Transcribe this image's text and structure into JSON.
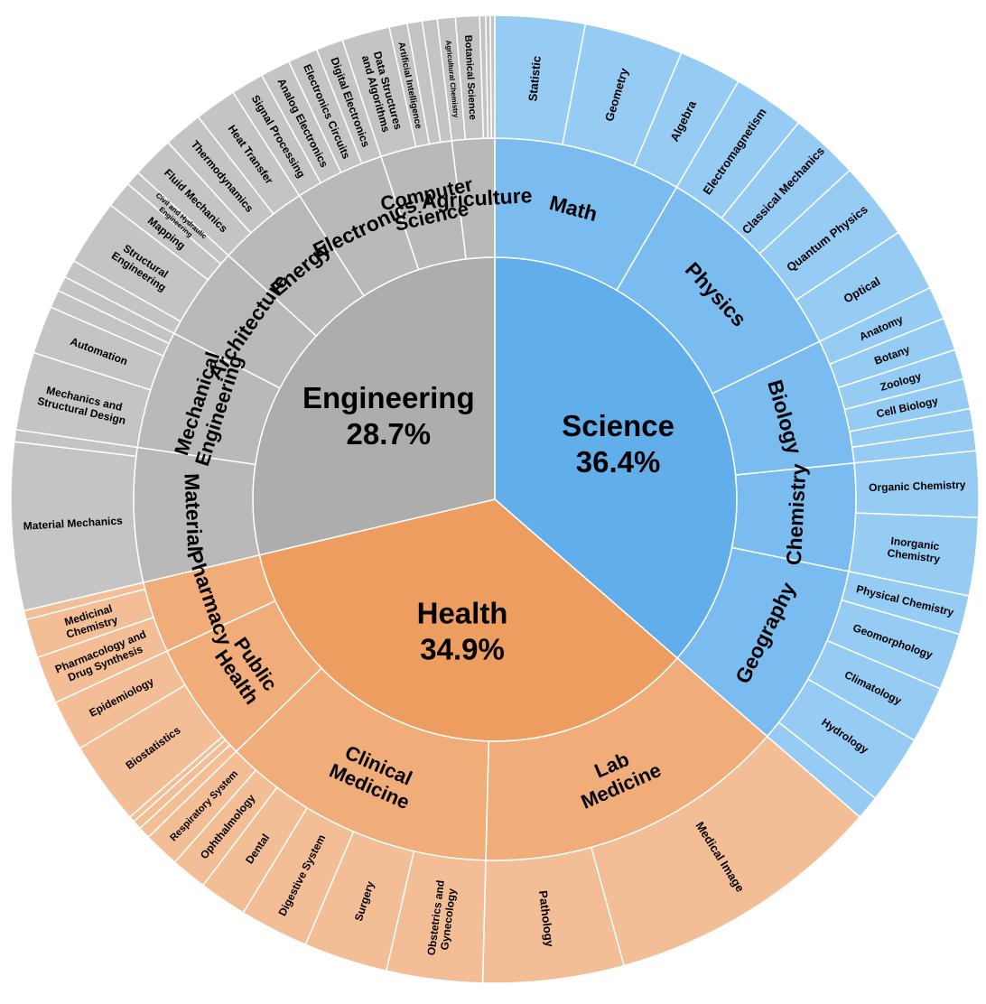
{
  "chart_data": {
    "type": "sunburst",
    "title": "",
    "top": [
      {
        "name": "Science",
        "label": "Science",
        "value_label": "36.4%",
        "value": 36.4,
        "color": "#62AEEA",
        "mid_color": "#7BBCF0",
        "outer_color": "#96CBF3"
      },
      {
        "name": "Health",
        "label": "Health",
        "value_label": "34.9%",
        "value": 34.9,
        "color": "#ED9D60",
        "mid_color": "#F0AD79",
        "outer_color": "#F3BE95"
      },
      {
        "name": "Engineering",
        "label": "Engineering",
        "value_label": "28.7%",
        "value": 28.7,
        "color": "#ADADAD",
        "mid_color": "#B9B9B9",
        "outer_color": "#C4C4C4"
      }
    ],
    "mid": [
      {
        "parent": "Science",
        "label": "Math",
        "lines": [
          "Math"
        ],
        "value": 8.4
      },
      {
        "parent": "Science",
        "label": "Physics",
        "lines": [
          "Physics"
        ],
        "value": 9.4
      },
      {
        "parent": "Science",
        "label": "Biology",
        "lines": [
          "Biology"
        ],
        "value": 5.6
      },
      {
        "parent": "Science",
        "label": "Chemistry",
        "lines": [
          "Chemistry"
        ],
        "value": 4.8
      },
      {
        "parent": "Science",
        "label": "Geography",
        "lines": [
          "Geography"
        ],
        "value": 8.2
      },
      {
        "parent": "Health",
        "label": "Lab Medicine",
        "lines": [
          "Lab",
          "Medicine"
        ],
        "value": 14.0
      },
      {
        "parent": "Health",
        "label": "Clinical Medicine",
        "lines": [
          "Clinical",
          "Medicine"
        ],
        "value": 12.3
      },
      {
        "parent": "Health",
        "label": "Public Health",
        "lines": [
          "Public",
          "Health"
        ],
        "value": 5.4
      },
      {
        "parent": "Health",
        "label": "Pharmacy",
        "lines": [
          "Pharmacy"
        ],
        "value": 3.2
      },
      {
        "parent": "Engineering",
        "label": "Material",
        "lines": [
          "Material"
        ],
        "value": 6.0
      },
      {
        "parent": "Engineering",
        "label": "Mechanical Engineering",
        "lines": [
          "Mechanical",
          "Engineering"
        ],
        "value": 5.3
      },
      {
        "parent": "Engineering",
        "label": "Architecture",
        "lines": [
          "Architecture"
        ],
        "value": 4.2
      },
      {
        "parent": "Engineering",
        "label": "Energy",
        "lines": [
          "Energy"
        ],
        "value": 4.1
      },
      {
        "parent": "Engineering",
        "label": "Electronics",
        "lines": [
          "Electronics"
        ],
        "value": 4.0
      },
      {
        "parent": "Engineering",
        "label": "Computer Science",
        "lines": [
          "Computer",
          "Science"
        ],
        "value": 3.2
      },
      {
        "parent": "Engineering",
        "label": "Agriculture",
        "lines": [
          "Agriculture"
        ],
        "value": 1.9
      }
    ],
    "outer": [
      {
        "parent": "Math",
        "label": "Statistic",
        "lines": [
          "Statistic"
        ],
        "value": 3.0,
        "size": 13
      },
      {
        "parent": "Math",
        "label": "Geometry",
        "lines": [
          "Geometry"
        ],
        "value": 3.3,
        "size": 13
      },
      {
        "parent": "Math",
        "label": "Algebra",
        "lines": [
          "Algebra"
        ],
        "value": 2.1,
        "size": 13
      },
      {
        "parent": "Physics",
        "label": "Electromagnetism",
        "lines": [
          "Electromagnetism"
        ],
        "value": 2.4,
        "size": 13
      },
      {
        "parent": "Physics",
        "label": "Classical Mechanics",
        "lines": [
          "Classical Mechanics"
        ],
        "value": 2.3,
        "size": 13
      },
      {
        "parent": "Physics",
        "label": "Quantum Physics",
        "lines": [
          "Quantum Physics"
        ],
        "value": 2.6,
        "size": 13
      },
      {
        "parent": "Physics",
        "label": "Optical",
        "lines": [
          "Optical"
        ],
        "value": 2.1,
        "size": 13
      },
      {
        "parent": "Biology",
        "label": "Anatomy",
        "lines": [
          "Anatomy"
        ],
        "value": 1.1,
        "size": 12
      },
      {
        "parent": "Biology",
        "label": "Botany",
        "lines": [
          "Botany"
        ],
        "value": 1.1,
        "size": 12
      },
      {
        "parent": "Biology",
        "label": "Zoology",
        "lines": [
          "Zoology"
        ],
        "value": 1.0,
        "size": 12
      },
      {
        "parent": "Biology",
        "label": "Cell Biology",
        "lines": [
          "Cell Biology"
        ],
        "value": 1.0,
        "size": 12
      },
      {
        "parent": "Biology",
        "label": "",
        "lines": [],
        "value": 0.7,
        "size": 12
      },
      {
        "parent": "Biology",
        "label": "",
        "lines": [],
        "value": 0.7,
        "size": 12
      },
      {
        "parent": "Chemistry",
        "label": "Organic Chemistry",
        "lines": [
          "Organic Chemistry"
        ],
        "value": 2.2,
        "size": 12
      },
      {
        "parent": "Chemistry",
        "label": "Inorganic Chemistry",
        "lines": [
          "Inorganic",
          "Chemistry"
        ],
        "value": 2.6,
        "size": 12
      },
      {
        "parent": "Geography",
        "label": "Physical Chemistry",
        "lines": [
          "Physical Chemistry"
        ],
        "value": 1.3,
        "size": 12
      },
      {
        "parent": "Geography",
        "label": "Geomorphology",
        "lines": [
          "Geomorphology"
        ],
        "value": 1.9,
        "size": 12
      },
      {
        "parent": "Geography",
        "label": "Climatology",
        "lines": [
          "Climatology"
        ],
        "value": 1.9,
        "size": 12
      },
      {
        "parent": "Geography",
        "label": "Hydrology",
        "lines": [
          "Hydrology"
        ],
        "value": 2.3,
        "size": 12
      },
      {
        "parent": "Geography",
        "label": "",
        "lines": [],
        "value": 0.8,
        "size": 12
      },
      {
        "parent": "Lab Medicine",
        "label": "Medical Image",
        "lines": [
          "Medical Image"
        ],
        "value": 9.3,
        "size": 13
      },
      {
        "parent": "Lab Medicine",
        "label": "Pathology",
        "lines": [
          "Pathology"
        ],
        "value": 4.7,
        "size": 13
      },
      {
        "parent": "Clinical Medicine",
        "label": "Obstetrics and Gynecology",
        "lines": [
          "Obstetrics and",
          "Gynecology"
        ],
        "value": 3.2,
        "size": 12
      },
      {
        "parent": "Clinical Medicine",
        "label": "Surgery",
        "lines": [
          "Surgery"
        ],
        "value": 2.8,
        "size": 12
      },
      {
        "parent": "Clinical Medicine",
        "label": "Digestive System",
        "lines": [
          "Digestive System"
        ],
        "value": 2.3,
        "size": 12
      },
      {
        "parent": "Clinical Medicine",
        "label": "Dental",
        "lines": [
          "Dental"
        ],
        "value": 1.6,
        "size": 12
      },
      {
        "parent": "Clinical Medicine",
        "label": "Ophthalmology",
        "lines": [
          "Ophthalmology"
        ],
        "value": 1.2,
        "size": 12
      },
      {
        "parent": "Clinical Medicine",
        "label": "Respiratory System",
        "lines": [
          "Respiratory System"
        ],
        "value": 1.2,
        "size": 11
      },
      {
        "parent": "Public Health",
        "label": "",
        "lines": [],
        "value": 0.4,
        "size": 12
      },
      {
        "parent": "Public Health",
        "label": "",
        "lines": [],
        "value": 0.3,
        "size": 12
      },
      {
        "parent": "Public Health",
        "label": "",
        "lines": [],
        "value": 0.2,
        "size": 12
      },
      {
        "parent": "Public Health",
        "label": "Biostatistics",
        "lines": [
          "Biostatistics"
        ],
        "value": 2.8,
        "size": 12
      },
      {
        "parent": "Public Health",
        "label": "Epidemiology",
        "lines": [
          "Epidemiology"
        ],
        "value": 1.7,
        "size": 12
      },
      {
        "parent": "Pharmacy",
        "label": "Pharmacology and Drug Synthesis",
        "lines": [
          "Pharmacology and",
          "Drug Synthesis"
        ],
        "value": 1.6,
        "size": 12
      },
      {
        "parent": "Pharmacy",
        "label": "Medicinal Chemistry",
        "lines": [
          "Medicinal",
          "Chemistry"
        ],
        "value": 1.3,
        "size": 12
      },
      {
        "parent": "Pharmacy",
        "label": "",
        "lines": [],
        "value": 0.3,
        "size": 12
      },
      {
        "parent": "Material",
        "label": "Material Mechanics",
        "lines": [
          "Material Mechanics"
        ],
        "value": 5.6,
        "size": 12
      },
      {
        "parent": "Material",
        "label": "",
        "lines": [],
        "value": 0.4,
        "size": 12
      },
      {
        "parent": "Mechanical Engineering",
        "label": "Mechanics and Structural Design",
        "lines": [
          "Mechanics and",
          "Structural Design"
        ],
        "value": 2.6,
        "size": 12
      },
      {
        "parent": "Mechanical Engineering",
        "label": "Automation",
        "lines": [
          "Automation"
        ],
        "value": 1.6,
        "size": 12
      },
      {
        "parent": "Mechanical Engineering",
        "label": "",
        "lines": [],
        "value": 0.6,
        "size": 12
      },
      {
        "parent": "Mechanical Engineering",
        "label": "",
        "lines": [],
        "value": 0.5,
        "size": 12
      },
      {
        "parent": "Architecture",
        "label": "",
        "lines": [],
        "value": 0.6,
        "size": 12
      },
      {
        "parent": "Architecture",
        "label": "Structural Engineering",
        "lines": [
          "Structural",
          "Engineering"
        ],
        "value": 2.2,
        "size": 12
      },
      {
        "parent": "Architecture",
        "label": "Mapping",
        "lines": [
          "Mapping"
        ],
        "value": 0.9,
        "size": 12
      },
      {
        "parent": "Architecture",
        "label": "Civil and Hydraulic Engineering",
        "lines": [
          "Civil and Hydraulic",
          "Engineering"
        ],
        "value": 0.5,
        "size": 8
      },
      {
        "parent": "Energy",
        "label": "Fluid Mechanics",
        "lines": [
          "Fluid Mechanics"
        ],
        "value": 1.4,
        "size": 12
      },
      {
        "parent": "Energy",
        "label": "Thermodynamics",
        "lines": [
          "Thermodynamics"
        ],
        "value": 1.3,
        "size": 12
      },
      {
        "parent": "Energy",
        "label": "Heat Transfer",
        "lines": [
          "Heat Transfer"
        ],
        "value": 1.4,
        "size": 12
      },
      {
        "parent": "Electronics",
        "label": "Signal Processing",
        "lines": [
          "Signal Processing"
        ],
        "value": 1.1,
        "size": 12
      },
      {
        "parent": "Electronics",
        "label": "Analog Electronics",
        "lines": [
          "Analog Electronics"
        ],
        "value": 1.0,
        "size": 12
      },
      {
        "parent": "Electronics",
        "label": "Electronics Circuits",
        "lines": [
          "Electronics Circuits"
        ],
        "value": 1.0,
        "size": 12
      },
      {
        "parent": "Electronics",
        "label": "Digital Electronics",
        "lines": [
          "Digital Electronics"
        ],
        "value": 0.9,
        "size": 12
      },
      {
        "parent": "Computer Science",
        "label": "Data Structures and Algorithms",
        "lines": [
          "Data Structures",
          "and Algorithms"
        ],
        "value": 1.6,
        "size": 12
      },
      {
        "parent": "Computer Science",
        "label": "Artificial Intelligence",
        "lines": [
          "Artificial Intelligence"
        ],
        "value": 0.6,
        "size": 10
      },
      {
        "parent": "Computer Science",
        "label": "",
        "lines": [],
        "value": 0.5,
        "size": 12
      },
      {
        "parent": "Computer Science",
        "label": "",
        "lines": [],
        "value": 0.5,
        "size": 12
      },
      {
        "parent": "Agriculture",
        "label": "Agricultural Chemistry",
        "lines": [
          "Agricultural Chemistry"
        ],
        "value": 0.6,
        "size": 8
      },
      {
        "parent": "Agriculture",
        "label": "Botanical Science",
        "lines": [
          "Botanical Science"
        ],
        "value": 0.8,
        "size": 11
      },
      {
        "parent": "Agriculture",
        "label": "",
        "lines": [],
        "value": 0.2,
        "size": 12
      },
      {
        "parent": "Agriculture",
        "label": "",
        "lines": [],
        "value": 0.15,
        "size": 12
      },
      {
        "parent": "Agriculture",
        "label": "",
        "lines": [],
        "value": 0.15,
        "size": 12
      }
    ]
  }
}
